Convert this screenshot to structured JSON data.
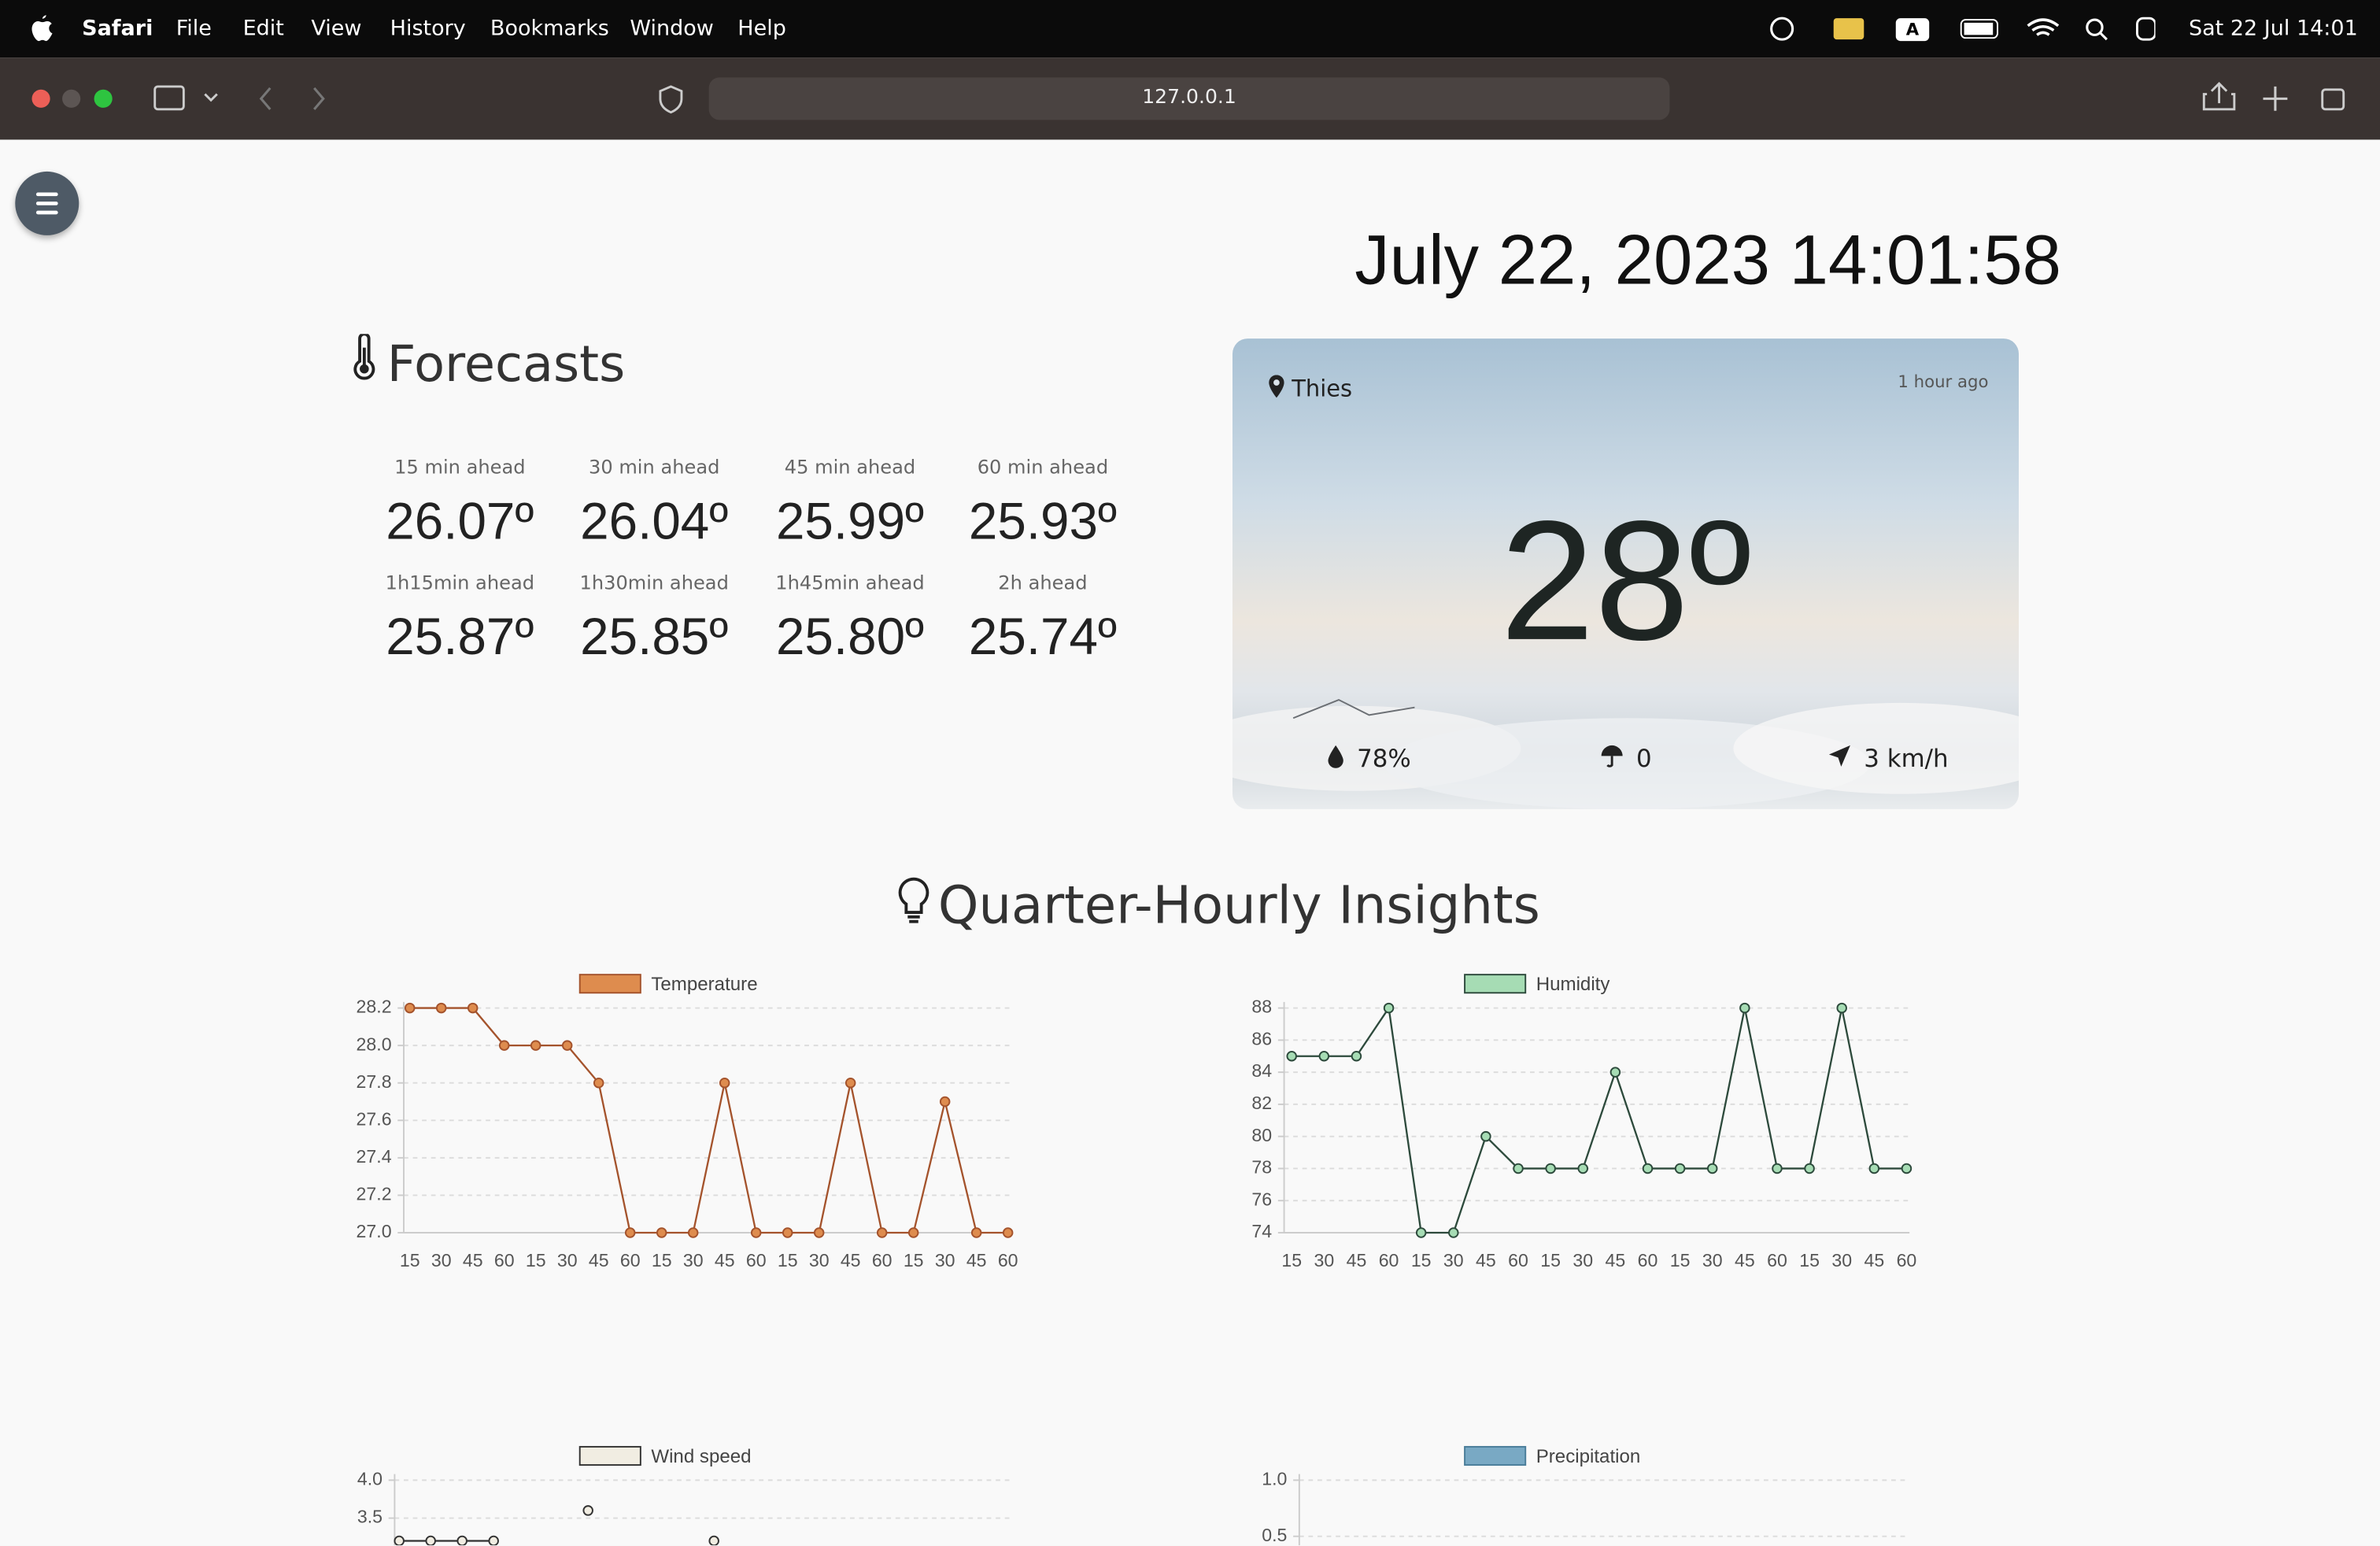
{
  "menu_bar": {
    "app": "Safari",
    "items": [
      "File",
      "Edit",
      "View",
      "History",
      "Bookmarks",
      "Window",
      "Help"
    ],
    "clock": "Sat 22 Jul 14:01"
  },
  "browser": {
    "url": "127.0.0.1"
  },
  "page": {
    "datetime": "July 22, 2023 14:01:58",
    "forecasts": {
      "title": "Forecasts",
      "items": [
        {
          "label": "15 min ahead",
          "value": "26.07º"
        },
        {
          "label": "30 min ahead",
          "value": "26.04º"
        },
        {
          "label": "45 min ahead",
          "value": "25.99º"
        },
        {
          "label": "60 min ahead",
          "value": "25.93º"
        },
        {
          "label": "1h15min ahead",
          "value": "25.87º"
        },
        {
          "label": "1h30min ahead",
          "value": "25.85º"
        },
        {
          "label": "1h45min ahead",
          "value": "25.80º"
        },
        {
          "label": "2h ahead",
          "value": "25.74º"
        }
      ]
    },
    "weather_card": {
      "location": "Thies",
      "updated": "1 hour ago",
      "temperature": "28º",
      "humidity": "78%",
      "precipitation": "0",
      "wind": "3 km/h"
    },
    "insights_title": "Quarter-Hourly Insights"
  },
  "chart_data": [
    {
      "type": "line",
      "categories": [
        15,
        30,
        45,
        60,
        15,
        30,
        45,
        60,
        15,
        30,
        45,
        60,
        15,
        30,
        45,
        60,
        15,
        30,
        45,
        60
      ],
      "series": [
        {
          "name": "Temperature",
          "color": "#de8c4e",
          "line_color": "#a4532c",
          "values": [
            28.2,
            28.2,
            28.2,
            28.0,
            28.0,
            28.0,
            27.8,
            27.0,
            27.0,
            27.0,
            27.8,
            27.0,
            27.0,
            27.0,
            27.8,
            27.0,
            27.0,
            27.7,
            27.0,
            27.0
          ]
        }
      ],
      "ylim": [
        27.0,
        28.2
      ],
      "yticks": [
        {
          "value": 27,
          "label": "27.0"
        },
        27.2,
        27.4,
        27.6,
        27.8,
        {
          "value": 28,
          "label": "28.0"
        },
        28.2
      ],
      "grid": true
    },
    {
      "type": "line",
      "categories": [
        15,
        30,
        45,
        60,
        15,
        30,
        45,
        60,
        15,
        30,
        45,
        60,
        15,
        30,
        45,
        60,
        15,
        30,
        45,
        60
      ],
      "series": [
        {
          "name": "Humidity",
          "color": "#a6dcb4",
          "line_color": "#2d4a3c",
          "values": [
            85,
            85,
            85,
            88,
            74,
            74,
            80,
            78,
            78,
            78,
            84,
            78,
            78,
            78,
            88,
            78,
            78,
            88,
            78,
            78
          ]
        }
      ],
      "ylim": [
        74,
        88
      ],
      "yticks": [
        74,
        76,
        78,
        80,
        82,
        84,
        86,
        88
      ],
      "grid": true
    },
    {
      "type": "line",
      "series": [
        {
          "name": "Wind speed",
          "color": "#f1ede2",
          "line_color": "#333333",
          "values": [
            3.2,
            3.2,
            3.2,
            3.2,
            null,
            null,
            3.6,
            null,
            null,
            null,
            3.2
          ]
        }
      ],
      "ylim": [
        3.0,
        4.0
      ],
      "yticks": [
        3.5,
        {
          "value": 4,
          "label": "4.0"
        }
      ],
      "grid": true
    },
    {
      "type": "line",
      "series": [
        {
          "name": "Precipitation",
          "color": "#79a9c4",
          "line_color": "#4a7d99",
          "values": []
        }
      ],
      "ylim": [
        0,
        1
      ],
      "yticks": [
        0.5,
        {
          "value": 1,
          "label": "1.0"
        }
      ],
      "grid": true
    }
  ]
}
